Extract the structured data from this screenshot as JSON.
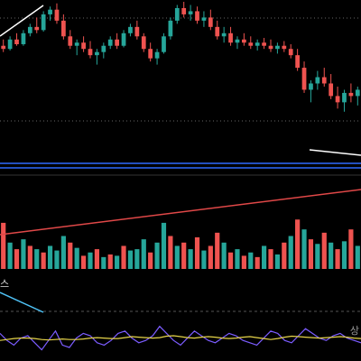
{
  "colors": {
    "background": "#000000",
    "bull": "#26a69a",
    "bear": "#ef5350",
    "trendline": "#ffffff",
    "volume_trend": "#e04848",
    "band": "#2f6bff",
    "grid_dotted": "#666666",
    "stoch_k": "#7b5cff",
    "stoch_d": "#e6d44a",
    "oscillator_trend": "#4fc3f7"
  },
  "indicator_label": "스",
  "oscillator_label": "상",
  "chart_data": [
    {
      "type": "candlestick",
      "title": "",
      "xlabel": "",
      "ylabel": "",
      "grid": false,
      "ylim": [
        0,
        100
      ],
      "candles": [
        {
          "o": 72,
          "h": 76,
          "l": 68,
          "c": 70
        },
        {
          "o": 70,
          "h": 78,
          "l": 69,
          "c": 76
        },
        {
          "o": 76,
          "h": 80,
          "l": 72,
          "c": 73
        },
        {
          "o": 73,
          "h": 82,
          "l": 72,
          "c": 80
        },
        {
          "o": 80,
          "h": 86,
          "l": 78,
          "c": 84
        },
        {
          "o": 84,
          "h": 90,
          "l": 80,
          "c": 82
        },
        {
          "o": 82,
          "h": 94,
          "l": 81,
          "c": 92
        },
        {
          "o": 92,
          "h": 97,
          "l": 88,
          "c": 95
        },
        {
          "o": 95,
          "h": 99,
          "l": 86,
          "c": 88
        },
        {
          "o": 88,
          "h": 92,
          "l": 76,
          "c": 78
        },
        {
          "o": 78,
          "h": 82,
          "l": 70,
          "c": 72
        },
        {
          "o": 72,
          "h": 76,
          "l": 66,
          "c": 74
        },
        {
          "o": 74,
          "h": 78,
          "l": 68,
          "c": 70
        },
        {
          "o": 70,
          "h": 75,
          "l": 64,
          "c": 66
        },
        {
          "o": 66,
          "h": 70,
          "l": 60,
          "c": 68
        },
        {
          "o": 68,
          "h": 74,
          "l": 64,
          "c": 72
        },
        {
          "o": 72,
          "h": 78,
          "l": 70,
          "c": 76
        },
        {
          "o": 76,
          "h": 80,
          "l": 70,
          "c": 72
        },
        {
          "o": 72,
          "h": 82,
          "l": 71,
          "c": 80
        },
        {
          "o": 80,
          "h": 86,
          "l": 78,
          "c": 84
        },
        {
          "o": 84,
          "h": 88,
          "l": 76,
          "c": 78
        },
        {
          "o": 78,
          "h": 80,
          "l": 68,
          "c": 70
        },
        {
          "o": 70,
          "h": 74,
          "l": 62,
          "c": 64
        },
        {
          "o": 64,
          "h": 70,
          "l": 60,
          "c": 68
        },
        {
          "o": 68,
          "h": 80,
          "l": 67,
          "c": 78
        },
        {
          "o": 78,
          "h": 90,
          "l": 76,
          "c": 88
        },
        {
          "o": 88,
          "h": 98,
          "l": 86,
          "c": 96
        },
        {
          "o": 96,
          "h": 100,
          "l": 90,
          "c": 92
        },
        {
          "o": 92,
          "h": 98,
          "l": 88,
          "c": 94
        },
        {
          "o": 94,
          "h": 97,
          "l": 86,
          "c": 88
        },
        {
          "o": 88,
          "h": 94,
          "l": 84,
          "c": 90
        },
        {
          "o": 90,
          "h": 95,
          "l": 82,
          "c": 84
        },
        {
          "o": 84,
          "h": 88,
          "l": 76,
          "c": 78
        },
        {
          "o": 78,
          "h": 84,
          "l": 74,
          "c": 80
        },
        {
          "o": 80,
          "h": 84,
          "l": 72,
          "c": 74
        },
        {
          "o": 74,
          "h": 78,
          "l": 70,
          "c": 76
        },
        {
          "o": 76,
          "h": 80,
          "l": 72,
          "c": 74
        },
        {
          "o": 74,
          "h": 78,
          "l": 70,
          "c": 72
        },
        {
          "o": 72,
          "h": 76,
          "l": 69,
          "c": 74
        },
        {
          "o": 74,
          "h": 77,
          "l": 70,
          "c": 72
        },
        {
          "o": 72,
          "h": 76,
          "l": 68,
          "c": 70
        },
        {
          "o": 70,
          "h": 74,
          "l": 67,
          "c": 72
        },
        {
          "o": 72,
          "h": 75,
          "l": 68,
          "c": 70
        },
        {
          "o": 70,
          "h": 73,
          "l": 64,
          "c": 66
        },
        {
          "o": 66,
          "h": 70,
          "l": 56,
          "c": 58
        },
        {
          "o": 58,
          "h": 62,
          "l": 42,
          "c": 44
        },
        {
          "o": 44,
          "h": 50,
          "l": 36,
          "c": 48
        },
        {
          "o": 48,
          "h": 56,
          "l": 44,
          "c": 52
        },
        {
          "o": 52,
          "h": 58,
          "l": 46,
          "c": 48
        },
        {
          "o": 48,
          "h": 54,
          "l": 38,
          "c": 40
        },
        {
          "o": 40,
          "h": 46,
          "l": 32,
          "c": 36
        },
        {
          "o": 36,
          "h": 44,
          "l": 30,
          "c": 42
        },
        {
          "o": 42,
          "h": 48,
          "l": 36,
          "c": 40
        },
        {
          "o": 40,
          "h": 46,
          "l": 34,
          "c": 44
        }
      ]
    },
    {
      "type": "bar",
      "title": "",
      "grid": false,
      "ylim": [
        0,
        100
      ],
      "values": [
        {
          "v": 70,
          "up": false
        },
        {
          "v": 40,
          "up": true
        },
        {
          "v": 30,
          "up": false
        },
        {
          "v": 45,
          "up": true
        },
        {
          "v": 35,
          "up": false
        },
        {
          "v": 30,
          "up": true
        },
        {
          "v": 25,
          "up": false
        },
        {
          "v": 35,
          "up": true
        },
        {
          "v": 28,
          "up": true
        },
        {
          "v": 50,
          "up": true
        },
        {
          "v": 40,
          "up": false
        },
        {
          "v": 32,
          "up": true
        },
        {
          "v": 20,
          "up": false
        },
        {
          "v": 25,
          "up": true
        },
        {
          "v": 30,
          "up": false
        },
        {
          "v": 18,
          "up": true
        },
        {
          "v": 22,
          "up": false
        },
        {
          "v": 20,
          "up": true
        },
        {
          "v": 35,
          "up": false
        },
        {
          "v": 28,
          "up": true
        },
        {
          "v": 30,
          "up": true
        },
        {
          "v": 45,
          "up": true
        },
        {
          "v": 25,
          "up": false
        },
        {
          "v": 40,
          "up": true
        },
        {
          "v": 70,
          "up": true
        },
        {
          "v": 50,
          "up": false
        },
        {
          "v": 35,
          "up": true
        },
        {
          "v": 40,
          "up": false
        },
        {
          "v": 30,
          "up": true
        },
        {
          "v": 48,
          "up": false
        },
        {
          "v": 28,
          "up": true
        },
        {
          "v": 35,
          "up": false
        },
        {
          "v": 55,
          "up": false
        },
        {
          "v": 40,
          "up": true
        },
        {
          "v": 25,
          "up": false
        },
        {
          "v": 30,
          "up": true
        },
        {
          "v": 20,
          "up": false
        },
        {
          "v": 25,
          "up": true
        },
        {
          "v": 18,
          "up": false
        },
        {
          "v": 35,
          "up": true
        },
        {
          "v": 30,
          "up": false
        },
        {
          "v": 22,
          "up": true
        },
        {
          "v": 40,
          "up": false
        },
        {
          "v": 50,
          "up": true
        },
        {
          "v": 75,
          "up": false
        },
        {
          "v": 60,
          "up": true
        },
        {
          "v": 45,
          "up": false
        },
        {
          "v": 38,
          "up": true
        },
        {
          "v": 55,
          "up": false
        },
        {
          "v": 40,
          "up": true
        },
        {
          "v": 30,
          "up": false
        },
        {
          "v": 42,
          "up": true
        },
        {
          "v": 60,
          "up": false
        },
        {
          "v": 35,
          "up": true
        }
      ]
    },
    {
      "type": "line",
      "title": "",
      "grid": false,
      "ylim": [
        0,
        100
      ],
      "series": [
        {
          "values": [
            55,
            40,
            30,
            45,
            50,
            35,
            20,
            40,
            60,
            30,
            25,
            45,
            55,
            50,
            35,
            30,
            40,
            55,
            60,
            45,
            35,
            40,
            50,
            70,
            55,
            40,
            30,
            45,
            60,
            50,
            40,
            35,
            45,
            55,
            50,
            40,
            35,
            30,
            45,
            60,
            55,
            40,
            35,
            50,
            65,
            55,
            45,
            40,
            50,
            55,
            45,
            40,
            35
          ]
        },
        {
          "values": [
            40,
            42,
            44,
            45,
            45,
            44,
            42,
            41,
            42,
            43,
            42,
            42,
            43,
            45,
            46,
            45,
            44,
            44,
            46,
            48,
            47,
            46,
            45,
            46,
            49,
            50,
            48,
            46,
            45,
            47,
            48,
            47,
            45,
            44,
            45,
            47,
            48,
            46,
            44,
            42,
            44,
            47,
            49,
            48,
            47,
            46,
            45,
            46,
            47,
            48,
            47,
            45,
            44
          ]
        }
      ]
    }
  ]
}
